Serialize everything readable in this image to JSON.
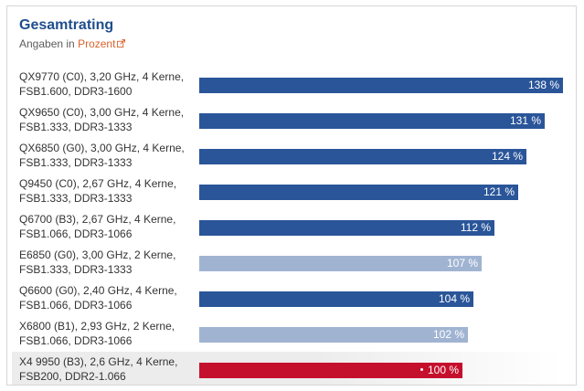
{
  "title": "Gesamtrating",
  "subtitle": {
    "prefix": "Angaben in",
    "link_text": "Prozent",
    "link_icon": "external-link-icon"
  },
  "colors": {
    "primary": "#2a5599",
    "secondary": "#a0b4d2",
    "highlight": "#c5102d",
    "title": "#1f4e8c",
    "link": "#d9622b"
  },
  "chart_data": {
    "type": "bar",
    "orientation": "horizontal",
    "title": "Gesamtrating",
    "subtitle": "Angaben in Prozent",
    "unit": "%",
    "xlim": [
      0,
      138
    ],
    "categories": [
      [
        "QX9770 (C0), 3,20 GHz, 4 Kerne,",
        "FSB1.600, DDR3-1600"
      ],
      [
        "QX9650 (C0), 3,00 GHz, 4 Kerne,",
        "FSB1.333, DDR3-1333"
      ],
      [
        "QX6850 (G0), 3,00 GHz, 4 Kerne,",
        "FSB1.333, DDR3-1333"
      ],
      [
        "Q9450 (C0), 2,67 GHz, 4 Kerne,",
        "FSB1.333, DDR3-1333"
      ],
      [
        "Q6700 (B3), 2,67 GHz, 4 Kerne,",
        "FSB1.066, DDR3-1066"
      ],
      [
        "E6850 (G0), 3,00 GHz, 2 Kerne,",
        "FSB1.333, DDR3-1333"
      ],
      [
        "Q6600 (G0), 2,40 GHz, 4 Kerne,",
        "FSB1.066, DDR3-1066"
      ],
      [
        "X6800 (B1), 2,93 GHz, 2 Kerne,",
        "FSB1.066, DDR3-1066"
      ],
      [
        "X4 9950 (B3), 2,6 GHz, 4 Kerne,",
        "FSB200, DDR2-1.066"
      ]
    ],
    "values": [
      138,
      131,
      124,
      121,
      112,
      107,
      104,
      102,
      100
    ],
    "value_labels": [
      "138 %",
      "131 %",
      "124 %",
      "121 %",
      "112 %",
      "107 %",
      "104 %",
      "102 %",
      "100 %"
    ],
    "bar_style": [
      "primary",
      "primary",
      "primary",
      "primary",
      "primary",
      "secondary",
      "primary",
      "secondary",
      "highlight"
    ],
    "reference_index": 8
  }
}
